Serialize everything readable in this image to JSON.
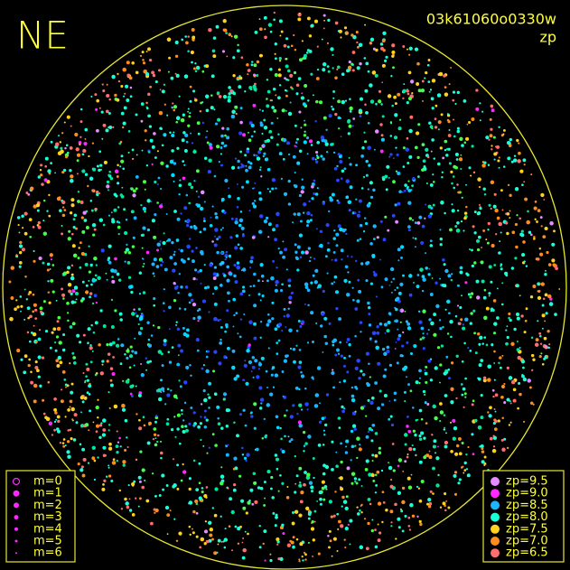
{
  "title": "NE",
  "frame_id": "03k61060o0330w",
  "metric": "zp",
  "magnitude_legend": [
    "m=0",
    "m=1",
    "m=2",
    "m=3",
    "m=4",
    "m=5",
    "m=6"
  ],
  "zp_legend": [
    {
      "label": "zp=9.5",
      "color": "#e68cff"
    },
    {
      "label": "zp=9.0",
      "color": "#ff28ff"
    },
    {
      "label": "zp=8.5",
      "color": "#1ab4ff"
    },
    {
      "label": "zp=8.0",
      "color": "#19ffd8"
    },
    {
      "label": "zp=7.5",
      "color": "#ffd21e"
    },
    {
      "label": "zp=7.0",
      "color": "#ff8c1e"
    },
    {
      "label": "zp=6.5",
      "color": "#ff6e6e"
    }
  ]
}
